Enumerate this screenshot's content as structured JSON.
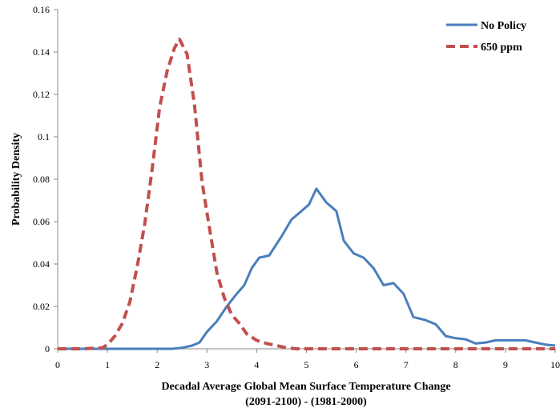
{
  "chart_data": {
    "type": "line",
    "title": "",
    "xlabel_line1": "Decadal Average Global Mean Surface Temperature Change",
    "xlabel_line2": "(2091-2100) - (1981-2000)",
    "ylabel": "Probability Density",
    "xlim": [
      0,
      10
    ],
    "ylim": [
      0,
      0.16
    ],
    "xticks": [
      "0",
      "1",
      "2",
      "3",
      "4",
      "5",
      "6",
      "7",
      "8",
      "9",
      "10"
    ],
    "yticks": [
      "0",
      "0.02",
      "0.04",
      "0.06",
      "0.08",
      "0.1",
      "0.12",
      "0.14",
      "0.16"
    ],
    "grid": false,
    "legend_position": "top-right",
    "series": [
      {
        "name": "No Policy",
        "color": "#4A7EBB",
        "style": "solid",
        "points": [
          [
            0,
            0
          ],
          [
            1,
            0
          ],
          [
            2,
            0
          ],
          [
            2.3,
            0
          ],
          [
            2.5,
            0.0005
          ],
          [
            2.7,
            0.0015
          ],
          [
            2.85,
            0.003
          ],
          [
            3.0,
            0.008
          ],
          [
            3.2,
            0.013
          ],
          [
            3.4,
            0.02
          ],
          [
            3.6,
            0.026
          ],
          [
            3.75,
            0.03
          ],
          [
            3.9,
            0.038
          ],
          [
            4.05,
            0.043
          ],
          [
            4.25,
            0.044
          ],
          [
            4.5,
            0.053
          ],
          [
            4.7,
            0.061
          ],
          [
            4.9,
            0.065
          ],
          [
            5.05,
            0.068
          ],
          [
            5.2,
            0.0755
          ],
          [
            5.4,
            0.069
          ],
          [
            5.6,
            0.065
          ],
          [
            5.75,
            0.051
          ],
          [
            5.95,
            0.045
          ],
          [
            6.15,
            0.043
          ],
          [
            6.35,
            0.038
          ],
          [
            6.55,
            0.03
          ],
          [
            6.75,
            0.031
          ],
          [
            6.95,
            0.026
          ],
          [
            7.15,
            0.015
          ],
          [
            7.4,
            0.0135
          ],
          [
            7.6,
            0.0115
          ],
          [
            7.8,
            0.006
          ],
          [
            8.0,
            0.005
          ],
          [
            8.2,
            0.0045
          ],
          [
            8.4,
            0.0025
          ],
          [
            8.6,
            0.003
          ],
          [
            8.8,
            0.004
          ],
          [
            9.0,
            0.004
          ],
          [
            9.2,
            0.004
          ],
          [
            9.4,
            0.004
          ],
          [
            9.6,
            0.003
          ],
          [
            9.8,
            0.002
          ],
          [
            10,
            0.0015
          ]
        ]
      },
      {
        "name": "650 ppm",
        "color": "#C0504D",
        "style": "dashed",
        "points": [
          [
            0,
            0
          ],
          [
            0.5,
            0
          ],
          [
            0.9,
            0.0005
          ],
          [
            1.0,
            0.002
          ],
          [
            1.15,
            0.006
          ],
          [
            1.3,
            0.012
          ],
          [
            1.45,
            0.022
          ],
          [
            1.6,
            0.039
          ],
          [
            1.75,
            0.059
          ],
          [
            1.9,
            0.085
          ],
          [
            2.05,
            0.114
          ],
          [
            2.2,
            0.131
          ],
          [
            2.35,
            0.142
          ],
          [
            2.45,
            0.146
          ],
          [
            2.6,
            0.139
          ],
          [
            2.75,
            0.115
          ],
          [
            2.9,
            0.079
          ],
          [
            3.05,
            0.057
          ],
          [
            3.2,
            0.036
          ],
          [
            3.35,
            0.024
          ],
          [
            3.5,
            0.016
          ],
          [
            3.65,
            0.012
          ],
          [
            3.8,
            0.007
          ],
          [
            4.0,
            0.004
          ],
          [
            4.2,
            0.0025
          ],
          [
            4.4,
            0.0015
          ],
          [
            4.6,
            0.0005
          ],
          [
            4.8,
            0
          ],
          [
            5,
            0
          ],
          [
            10,
            0
          ]
        ]
      }
    ]
  }
}
